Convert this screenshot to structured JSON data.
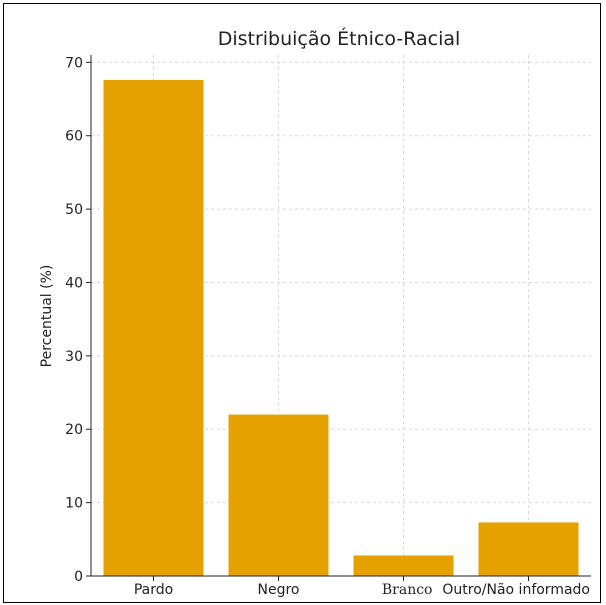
{
  "chart_data": {
    "type": "bar",
    "title": "Distribuição Étnico-Racial",
    "xlabel": "",
    "ylabel": "Percentual (%)",
    "categories": [
      "Pardo",
      "Negro",
      "Branco",
      "Outro/Não informado"
    ],
    "values": [
      67.6,
      22.0,
      2.8,
      7.3
    ],
    "ylim": [
      0,
      71
    ],
    "yticks": [
      0,
      10,
      20,
      30,
      40,
      50,
      60,
      70
    ],
    "grid": true,
    "bar_color": "#e5a100",
    "grid_color": "#d9d9d9"
  }
}
